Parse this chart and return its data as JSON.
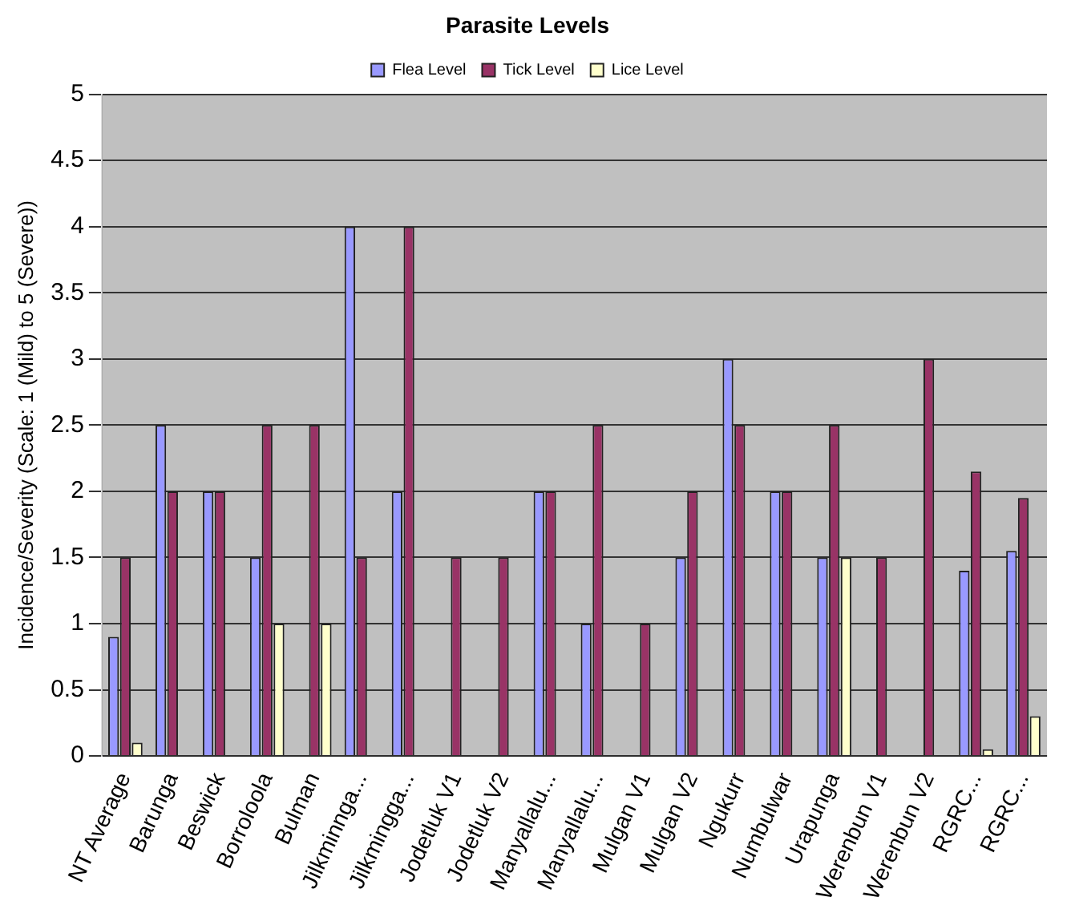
{
  "chart_data": {
    "type": "bar",
    "title": "Parasite Levels",
    "ylabel": "Incidence/Severity (Scale: 1 (Mild) to 5 (Severe))",
    "categories": [
      "NT Average",
      "Barunga",
      "Beswick",
      "Borroloola",
      "Bulman",
      "Jilkminnga...",
      "Jilkmingga...",
      "Jodetluk V1",
      "Jodetluk V2",
      "Manyallalu...",
      "Manyallalu...",
      "Mulgan V1",
      "Mulgan V2",
      "Ngukurr",
      "Numbulwar",
      "Urapunga",
      "Werenbun V1",
      "Werenbun V2",
      "RGRC...",
      "RGRC..."
    ],
    "series": [
      {
        "name": "Flea Level",
        "color": "#9999ff",
        "values": [
          0.9,
          2.5,
          2,
          1.5,
          0,
          4,
          2,
          0,
          0,
          2,
          1,
          0,
          1.5,
          3,
          2,
          1.5,
          0,
          0,
          1.4,
          1.55
        ]
      },
      {
        "name": "Tick Level",
        "color": "#993366",
        "values": [
          1.5,
          2,
          2,
          2.5,
          2.5,
          1.5,
          4,
          1.5,
          1.5,
          2,
          2.5,
          1,
          2,
          2.5,
          2,
          2.5,
          1.5,
          3,
          2.15,
          1.95
        ]
      },
      {
        "name": "Lice Level",
        "color": "#ffffcc",
        "values": [
          0.1,
          0,
          0,
          1,
          1,
          0,
          0,
          0,
          0,
          0,
          0,
          0,
          0,
          0,
          0,
          1.5,
          0,
          0,
          0.05,
          0.3
        ]
      }
    ],
    "ylim": [
      0,
      5
    ],
    "yticks": [
      0,
      0.5,
      1,
      1.5,
      2,
      2.5,
      3,
      3.5,
      4,
      4.5,
      5
    ],
    "grid": "y",
    "legend": "top"
  }
}
